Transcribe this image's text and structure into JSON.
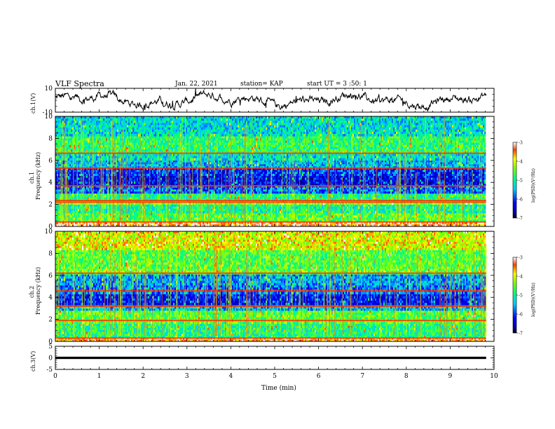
{
  "header": {
    "title": "VLF Spectra",
    "date": "Jan. 22, 2021",
    "station": "station= KAP",
    "start_ut": "start UT =  3 :50: 1"
  },
  "labels": {
    "ch1_wave": "ch.1(V)",
    "ch1_spec_a": "ch.1",
    "ch1_spec_b": "Frequency (kHz)",
    "ch2_spec_a": "ch.2",
    "ch2_spec_b": "Frequency (kHz)",
    "ch3_wave": "ch.3(V)",
    "xlabel": "Time (min)",
    "cbar1": "log(PSD)(V²/Hz)",
    "cbar2": "log(PSD)(V²/Hz)"
  },
  "chart_data": [
    {
      "type": "line",
      "name_hint": "ch1-waveform",
      "ylabel": "ch.1(V)",
      "xlim": [
        0,
        10
      ],
      "ylim": [
        -10,
        10
      ],
      "yticks": [
        "10",
        "-10"
      ],
      "x_extent": [
        0,
        9.82
      ],
      "description_level": "noisy signal oscillating roughly between -8 and 8 V"
    },
    {
      "type": "heatmap",
      "name_hint": "ch1-spectrogram",
      "ylabel": "Frequency (kHz)",
      "xlim": [
        0,
        10
      ],
      "ylim": [
        0,
        10
      ],
      "yticks": [
        "0",
        "2",
        "4",
        "6",
        "8",
        "10"
      ],
      "colorbar": {
        "label": "log(PSD)(V²/Hz)",
        "range": [
          -7,
          -3
        ],
        "ticks": [
          "-3",
          "-4",
          "-5",
          "-6",
          "-7"
        ]
      },
      "bands": [
        {
          "f": [
            0.0,
            0.4
          ],
          "level": -3.4
        },
        {
          "f": [
            0.4,
            1.2
          ],
          "level": -4.6
        },
        {
          "f": [
            1.2,
            2.0
          ],
          "level": -5.0
        },
        {
          "f": [
            2.0,
            2.3
          ],
          "level": -4.3
        },
        {
          "f": [
            2.3,
            3.0
          ],
          "level": -4.9
        },
        {
          "f": [
            3.0,
            3.7
          ],
          "level": -5.9
        },
        {
          "f": [
            3.7,
            4.6
          ],
          "level": -6.3
        },
        {
          "f": [
            4.6,
            5.3
          ],
          "level": -6.1
        },
        {
          "f": [
            5.3,
            6.0
          ],
          "level": -5.5
        },
        {
          "f": [
            6.0,
            6.6
          ],
          "level": -5.3
        },
        {
          "f": [
            6.6,
            8.2
          ],
          "level": -4.8
        },
        {
          "f": [
            8.2,
            10.0
          ],
          "level": -5.3
        }
      ],
      "lines_khz": [
        2.2,
        2.35,
        3.7,
        5.3,
        6.65,
        0.4
      ]
    },
    {
      "type": "heatmap",
      "name_hint": "ch2-spectrogram",
      "ylabel": "Frequency (kHz)",
      "xlim": [
        0,
        10
      ],
      "ylim": [
        0,
        10
      ],
      "yticks": [
        "0",
        "2",
        "4",
        "6",
        "8",
        "10"
      ],
      "colorbar": {
        "label": "log(PSD)(V²/Hz)",
        "range": [
          -7,
          -3
        ],
        "ticks": [
          "-3",
          "-4",
          "-5",
          "-6",
          "-7"
        ]
      },
      "bands": [
        {
          "f": [
            0.0,
            0.3
          ],
          "level": -3.5
        },
        {
          "f": [
            0.3,
            1.6
          ],
          "level": -4.9
        },
        {
          "f": [
            1.6,
            2.8
          ],
          "level": -4.6
        },
        {
          "f": [
            2.8,
            3.3
          ],
          "level": -5.5
        },
        {
          "f": [
            3.3,
            4.3
          ],
          "level": -6.2
        },
        {
          "f": [
            4.3,
            5.1
          ],
          "level": -5.8
        },
        {
          "f": [
            5.1,
            6.1
          ],
          "level": -5.6
        },
        {
          "f": [
            6.1,
            6.6
          ],
          "level": -4.5
        },
        {
          "f": [
            6.6,
            8.3
          ],
          "level": -4.6
        },
        {
          "f": [
            8.3,
            10.0
          ],
          "level": -4.0
        }
      ],
      "lines_khz": [
        6.2,
        3.2,
        1.9,
        4.6,
        0.3
      ]
    },
    {
      "type": "line",
      "name_hint": "ch3-waveform",
      "ylabel": "ch.3(V)",
      "xlim": [
        0,
        10
      ],
      "ylim": [
        -5,
        5
      ],
      "yticks": [
        "5",
        "0",
        "-5"
      ],
      "x_extent": [
        0,
        9.82
      ],
      "level": 0.0,
      "band_halfwidth": 0.5
    }
  ],
  "xaxis": {
    "label": "Time (min)",
    "ticks": [
      "0",
      "1",
      "2",
      "3",
      "4",
      "5",
      "6",
      "7",
      "8",
      "9",
      "10"
    ]
  }
}
